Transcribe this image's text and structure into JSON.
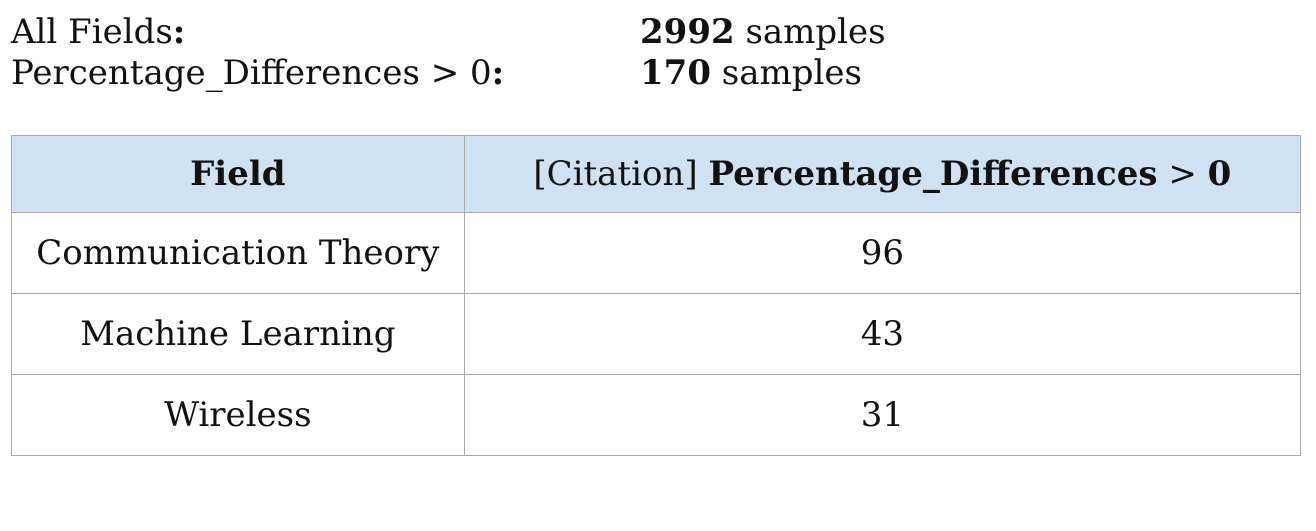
{
  "summary": {
    "all_fields": {
      "label": "All Fields",
      "colon": ":",
      "count": "2992",
      "unit": " samples"
    },
    "filtered": {
      "label": "Percentage_Differences > 0",
      "colon": ":",
      "count": "170",
      "unit": " samples"
    }
  },
  "table": {
    "headers": {
      "field": "Field",
      "metric_prefix": "[Citation] ",
      "metric_name": "Percentage_Differences",
      "metric_op": " > ",
      "metric_threshold": "0"
    },
    "rows": [
      {
        "field": "Communication Theory",
        "value": "96"
      },
      {
        "field": "Machine Learning",
        "value": "43"
      },
      {
        "field": "Wireless",
        "value": "31"
      }
    ]
  }
}
